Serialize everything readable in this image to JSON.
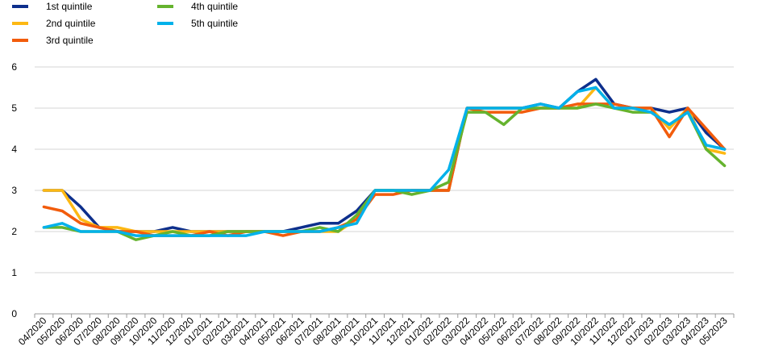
{
  "chart_data": {
    "type": "line",
    "title": "",
    "xlabel": "",
    "ylabel": "",
    "ylim": [
      0,
      6
    ],
    "yticks": [
      0,
      1,
      2,
      3,
      4,
      5,
      6
    ],
    "grid": "horizontal",
    "legend_position": "top-left",
    "x": [
      "04/2020",
      "05/2020",
      "06/2020",
      "07/2020",
      "08/2020",
      "09/2020",
      "10/2020",
      "11/2020",
      "12/2020",
      "01/2021",
      "02/2021",
      "03/2021",
      "04/2021",
      "05/2021",
      "06/2021",
      "07/2021",
      "08/2021",
      "09/2021",
      "10/2021",
      "11/2021",
      "12/2021",
      "01/2022",
      "02/2022",
      "03/2022",
      "04/2022",
      "05/2022",
      "06/2022",
      "07/2022",
      "08/2022",
      "09/2022",
      "10/2022",
      "11/2022",
      "12/2022",
      "01/2023",
      "02/2023",
      "03/2023",
      "04/2023",
      "05/2023"
    ],
    "series": [
      {
        "name": "1st quintile",
        "color": "#0d2f8c",
        "values": [
          3.0,
          3.0,
          2.6,
          2.1,
          2.0,
          2.0,
          2.0,
          2.1,
          2.0,
          2.0,
          2.0,
          2.0,
          2.0,
          2.0,
          2.1,
          2.2,
          2.2,
          2.5,
          3.0,
          3.0,
          3.0,
          3.0,
          3.0,
          5.0,
          5.0,
          5.0,
          5.0,
          5.1,
          5.0,
          5.4,
          5.7,
          5.1,
          5.0,
          5.0,
          4.9,
          5.0,
          4.4,
          4.0
        ]
      },
      {
        "name": "2nd quintile",
        "color": "#fdb813",
        "values": [
          3.0,
          3.0,
          2.3,
          2.1,
          2.1,
          2.0,
          2.0,
          2.0,
          2.0,
          2.0,
          2.0,
          2.0,
          2.0,
          2.0,
          2.0,
          2.0,
          2.0,
          2.3,
          3.0,
          3.0,
          3.0,
          3.0,
          3.0,
          5.0,
          5.0,
          5.0,
          5.0,
          5.0,
          5.0,
          5.0,
          5.5,
          5.0,
          5.0,
          5.0,
          4.5,
          5.0,
          4.0,
          3.9
        ]
      },
      {
        "name": "3rd quintile",
        "color": "#f25c0c",
        "values": [
          2.6,
          2.5,
          2.2,
          2.1,
          2.0,
          2.0,
          1.9,
          1.9,
          1.9,
          2.0,
          1.9,
          2.0,
          2.0,
          1.9,
          2.0,
          2.0,
          2.1,
          2.3,
          2.9,
          2.9,
          3.0,
          3.0,
          3.0,
          5.0,
          4.9,
          4.9,
          4.9,
          5.0,
          5.0,
          5.1,
          5.1,
          5.1,
          5.0,
          5.0,
          4.3,
          5.0,
          4.5,
          4.0
        ]
      },
      {
        "name": "4th quintile",
        "color": "#65b32e",
        "values": [
          2.1,
          2.1,
          2.0,
          2.0,
          2.0,
          1.8,
          1.9,
          2.0,
          1.9,
          1.9,
          2.0,
          2.0,
          2.0,
          2.0,
          2.0,
          2.1,
          2.0,
          2.4,
          3.0,
          3.0,
          2.9,
          3.0,
          3.2,
          4.9,
          4.9,
          4.6,
          5.0,
          5.0,
          5.0,
          5.0,
          5.1,
          5.0,
          4.9,
          4.9,
          4.6,
          4.9,
          4.0,
          3.6
        ]
      },
      {
        "name": "5th quintile",
        "color": "#00b1ea",
        "values": [
          2.1,
          2.2,
          2.0,
          2.0,
          2.0,
          1.9,
          1.9,
          1.9,
          1.9,
          1.9,
          1.9,
          1.9,
          2.0,
          2.0,
          2.0,
          2.0,
          2.1,
          2.2,
          3.0,
          3.0,
          3.0,
          3.0,
          3.5,
          5.0,
          5.0,
          5.0,
          5.0,
          5.1,
          5.0,
          5.4,
          5.5,
          5.0,
          5.0,
          4.9,
          4.6,
          4.9,
          4.1,
          4.0
        ]
      }
    ]
  }
}
